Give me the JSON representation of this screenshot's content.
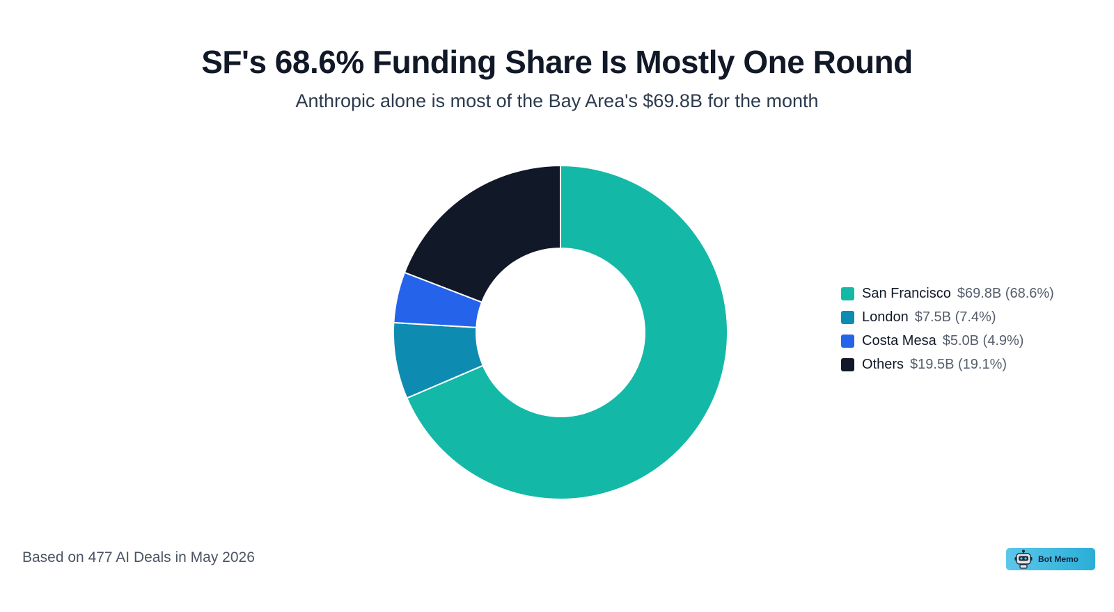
{
  "header": {
    "title": "SF's 68.6% Funding Share Is Mostly One Round",
    "subtitle": "Anthropic alone is most of the Bay Area's $69.8B for the month"
  },
  "chart_data": {
    "type": "pie",
    "style": "donut",
    "legend_position": "right",
    "categories": [
      "San Francisco",
      "London",
      "Costa Mesa",
      "Others"
    ],
    "values": [
      69.8,
      7.5,
      5.0,
      19.5
    ],
    "percentages": [
      68.6,
      7.4,
      4.9,
      19.1
    ],
    "unit": "$B",
    "colors": [
      "#14b8a6",
      "#0e8bb0",
      "#2563eb",
      "#111827"
    ],
    "legend": [
      {
        "name": "San Francisco",
        "value_label": "$69.8B (68.6%)"
      },
      {
        "name": "London",
        "value_label": "$7.5B (7.4%)"
      },
      {
        "name": "Costa Mesa",
        "value_label": "$5.0B (4.9%)"
      },
      {
        "name": "Others",
        "value_label": "$19.5B (19.1%)"
      }
    ]
  },
  "footer": {
    "note": "Based on 477 AI Deals in May 2026",
    "badge_label": "Bot Memo",
    "badge_icon": "robot-icon"
  }
}
